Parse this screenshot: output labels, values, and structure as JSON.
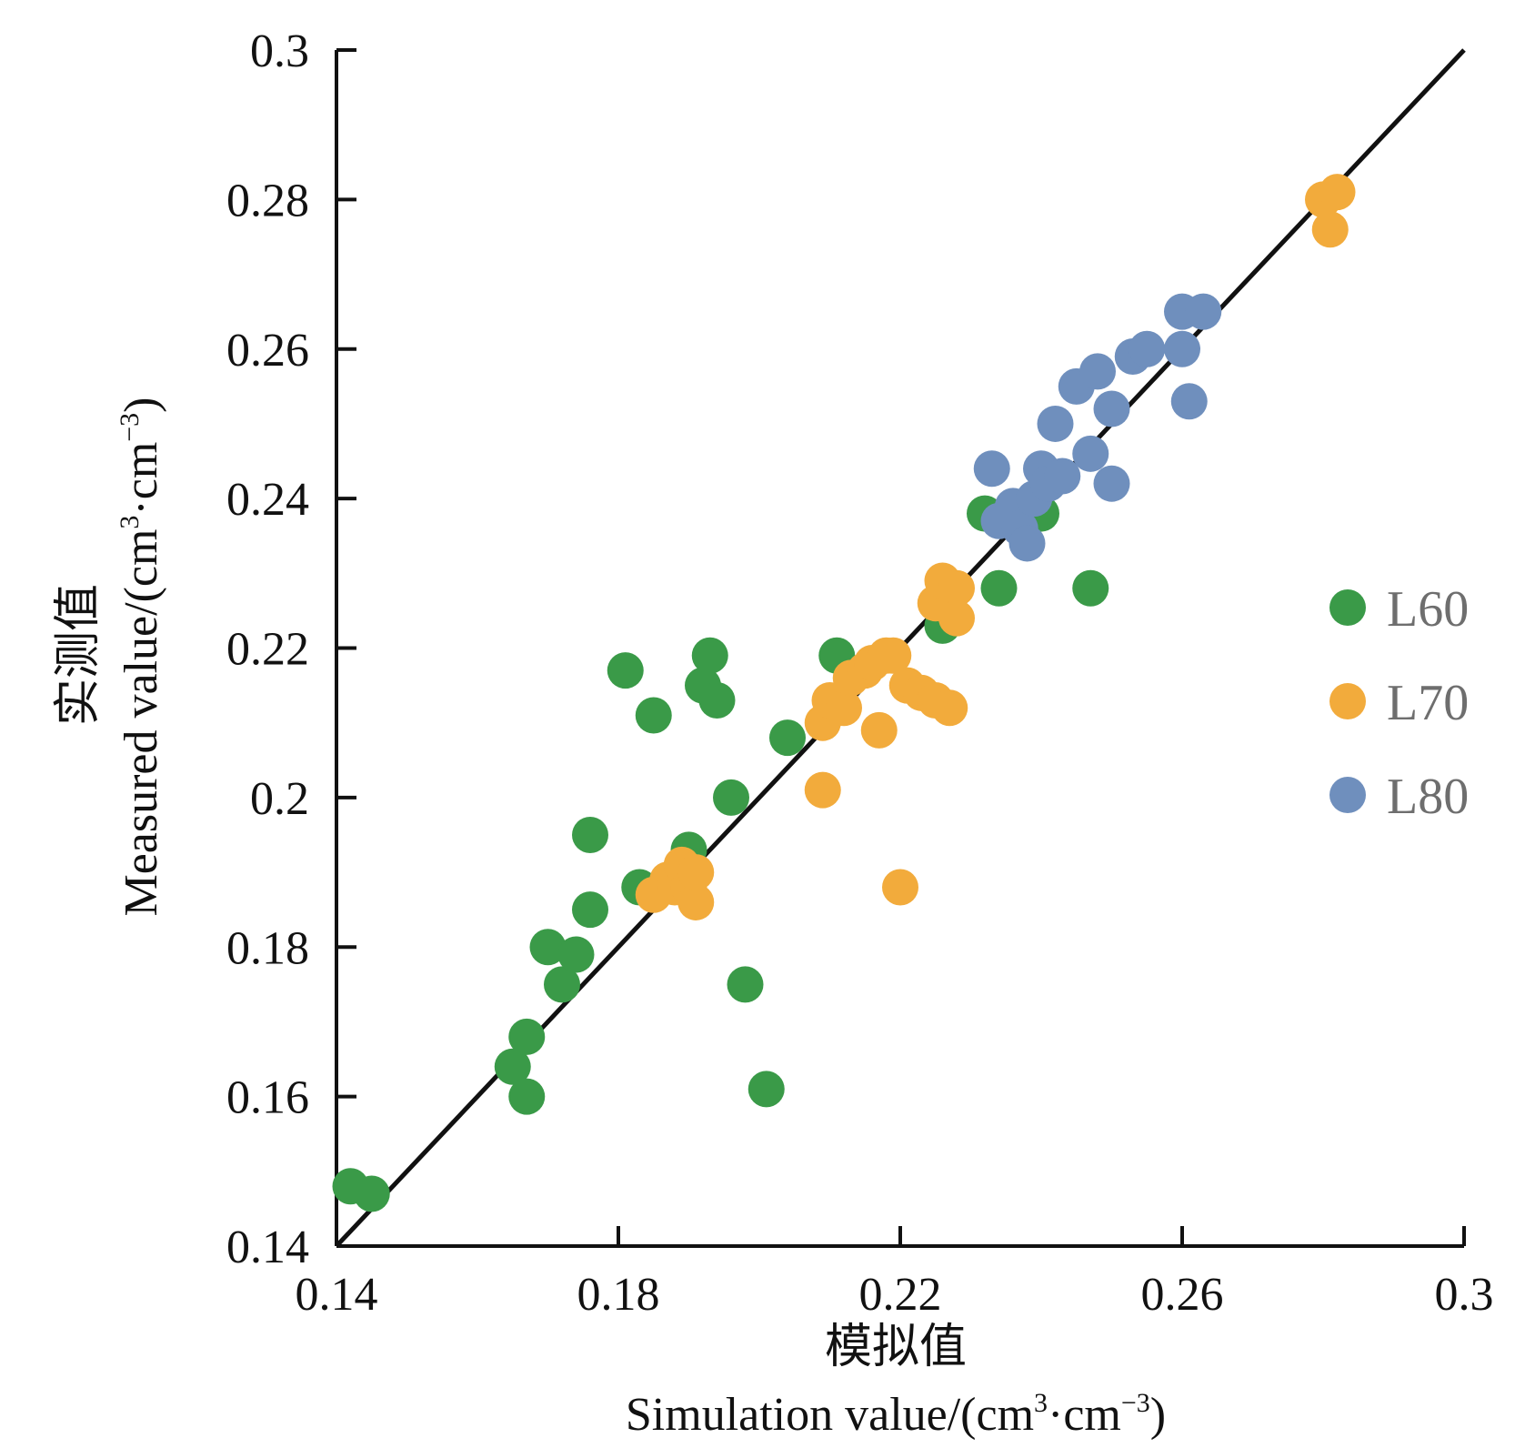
{
  "chart_data": {
    "type": "scatter",
    "xlabel_cn": "模拟值",
    "xlabel_en": "Simulation value/(cm",
    "xlabel_en_sup1": "3",
    "xlabel_en_mid": "·cm",
    "xlabel_en_sup2": "−3",
    "xlabel_en_end": ")",
    "ylabel_cn": "实测值",
    "ylabel_en": "Measured value/(cm",
    "ylabel_en_sup1": "3",
    "ylabel_en_mid": "·cm",
    "ylabel_en_sup2": "−3",
    "ylabel_en_end": ")",
    "xlim": [
      0.14,
      0.3
    ],
    "ylim": [
      0.14,
      0.3
    ],
    "x_ticks": [
      0.14,
      0.18,
      0.22,
      0.26,
      0.3
    ],
    "x_tick_labels": [
      "0.14",
      "0.18",
      "0.22",
      "0.26",
      "0.3"
    ],
    "y_ticks": [
      0.14,
      0.16,
      0.18,
      0.2,
      0.22,
      0.24,
      0.26,
      0.28,
      0.3
    ],
    "y_tick_labels": [
      "0.14",
      "0.16",
      "0.18",
      "0.2",
      "0.22",
      "0.24",
      "0.26",
      "0.28",
      "0.3"
    ],
    "reference_line": "1:1",
    "grid": false,
    "legend_position": "right",
    "series": [
      {
        "name": "L60",
        "color": "#3a9a48",
        "points": [
          [
            0.142,
            0.148
          ],
          [
            0.145,
            0.147
          ],
          [
            0.165,
            0.164
          ],
          [
            0.167,
            0.16
          ],
          [
            0.167,
            0.168
          ],
          [
            0.17,
            0.18
          ],
          [
            0.172,
            0.175
          ],
          [
            0.174,
            0.179
          ],
          [
            0.176,
            0.185
          ],
          [
            0.176,
            0.195
          ],
          [
            0.181,
            0.217
          ],
          [
            0.183,
            0.188
          ],
          [
            0.185,
            0.211
          ],
          [
            0.19,
            0.193
          ],
          [
            0.192,
            0.215
          ],
          [
            0.193,
            0.219
          ],
          [
            0.194,
            0.213
          ],
          [
            0.196,
            0.2
          ],
          [
            0.198,
            0.175
          ],
          [
            0.201,
            0.161
          ],
          [
            0.204,
            0.208
          ],
          [
            0.211,
            0.219
          ],
          [
            0.226,
            0.223
          ],
          [
            0.227,
            0.227
          ],
          [
            0.232,
            0.238
          ],
          [
            0.234,
            0.228
          ],
          [
            0.24,
            0.238
          ],
          [
            0.247,
            0.228
          ]
        ]
      },
      {
        "name": "L70",
        "color": "#f2ab3c",
        "points": [
          [
            0.185,
            0.187
          ],
          [
            0.187,
            0.189
          ],
          [
            0.188,
            0.188
          ],
          [
            0.189,
            0.191
          ],
          [
            0.19,
            0.188
          ],
          [
            0.191,
            0.186
          ],
          [
            0.191,
            0.19
          ],
          [
            0.209,
            0.201
          ],
          [
            0.209,
            0.21
          ],
          [
            0.21,
            0.213
          ],
          [
            0.212,
            0.212
          ],
          [
            0.213,
            0.216
          ],
          [
            0.215,
            0.217
          ],
          [
            0.216,
            0.218
          ],
          [
            0.217,
            0.209
          ],
          [
            0.218,
            0.219
          ],
          [
            0.219,
            0.219
          ],
          [
            0.22,
            0.188
          ],
          [
            0.221,
            0.215
          ],
          [
            0.223,
            0.214
          ],
          [
            0.225,
            0.226
          ],
          [
            0.225,
            0.213
          ],
          [
            0.226,
            0.229
          ],
          [
            0.227,
            0.212
          ],
          [
            0.228,
            0.228
          ],
          [
            0.228,
            0.224
          ],
          [
            0.28,
            0.28
          ],
          [
            0.281,
            0.276
          ],
          [
            0.282,
            0.281
          ]
        ]
      },
      {
        "name": "L80",
        "color": "#6f8fbd",
        "points": [
          [
            0.233,
            0.244
          ],
          [
            0.234,
            0.237
          ],
          [
            0.236,
            0.239
          ],
          [
            0.237,
            0.236
          ],
          [
            0.238,
            0.234
          ],
          [
            0.239,
            0.24
          ],
          [
            0.24,
            0.244
          ],
          [
            0.241,
            0.242
          ],
          [
            0.242,
            0.25
          ],
          [
            0.243,
            0.243
          ],
          [
            0.245,
            0.255
          ],
          [
            0.247,
            0.246
          ],
          [
            0.248,
            0.257
          ],
          [
            0.25,
            0.252
          ],
          [
            0.25,
            0.242
          ],
          [
            0.253,
            0.259
          ],
          [
            0.255,
            0.26
          ],
          [
            0.26,
            0.26
          ],
          [
            0.26,
            0.265
          ],
          [
            0.261,
            0.253
          ],
          [
            0.263,
            0.265
          ]
        ]
      }
    ]
  }
}
